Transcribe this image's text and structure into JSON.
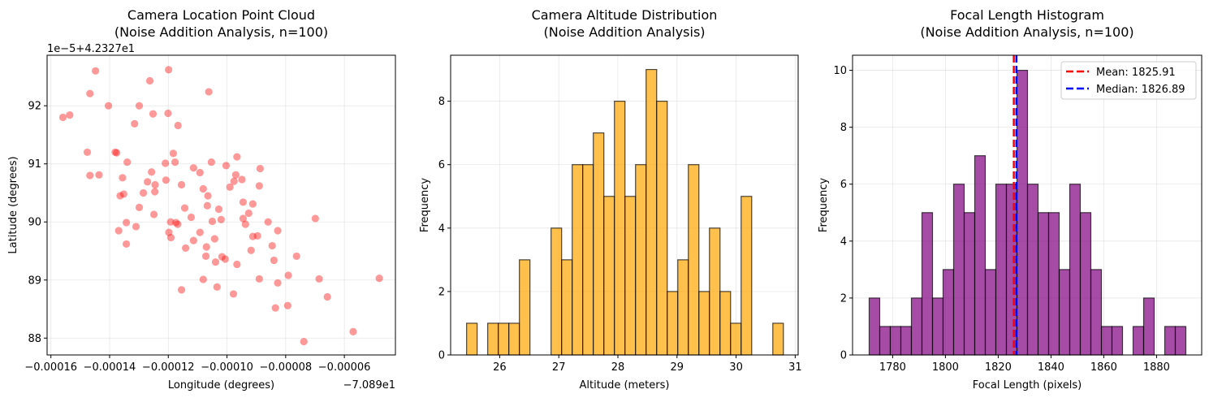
{
  "chart_data": [
    {
      "type": "scatter",
      "title_lines": [
        "Camera Location Point Cloud",
        "(Noise Addition Analysis, n=100)"
      ],
      "xlabel": "Longitude (degrees)",
      "ylabel": "Latitude (degrees)",
      "x_offset_text": "−7.089e1",
      "y_offset_text": "1e−5+4.2327e1",
      "xlim": [
        -0.0001613,
        -4.26e-05
      ],
      "ylim": [
        87.71,
        92.87
      ],
      "xticks": [
        -0.00016,
        -0.00014,
        -0.00012,
        -0.0001,
        -8e-05,
        -6e-05
      ],
      "xtick_labels": [
        "−0.00016",
        "−0.00014",
        "−0.00012",
        "−0.00010",
        "−0.00008",
        "−0.00006"
      ],
      "yticks": [
        88,
        89,
        90,
        91,
        92
      ],
      "ytick_labels": [
        "88",
        "89",
        "90",
        "91",
        "92"
      ],
      "grid": true,
      "color": "#ff0000",
      "opacity": 0.4,
      "points": [
        [
          -0.0001559,
          91.8
        ],
        [
          -0.0001536,
          91.84
        ],
        [
          -0.0001448,
          92.6
        ],
        [
          -0.0001467,
          92.21
        ],
        [
          -0.0001404,
          92.0
        ],
        [
          -0.0001263,
          92.43
        ],
        [
          -0.0001299,
          92.0
        ],
        [
          -0.0001252,
          91.86
        ],
        [
          -0.0001199,
          92.62
        ],
        [
          -0.0001201,
          91.87
        ],
        [
          -0.0001167,
          91.66
        ],
        [
          -0.0001062,
          92.24
        ],
        [
          -0.0001315,
          91.69
        ],
        [
          -0.0001476,
          91.2
        ],
        [
          -0.0001381,
          91.2
        ],
        [
          -0.0001376,
          91.19
        ],
        [
          -0.000134,
          91.03
        ],
        [
          -0.0001467,
          90.8
        ],
        [
          -0.0001436,
          90.81
        ],
        [
          -0.0001356,
          90.76
        ],
        [
          -0.0001364,
          90.45
        ],
        [
          -0.0001352,
          90.48
        ],
        [
          -0.0001271,
          90.69
        ],
        [
          -0.0001257,
          90.86
        ],
        [
          -0.0001245,
          90.64
        ],
        [
          -0.0001246,
          90.52
        ],
        [
          -0.0001285,
          90.5
        ],
        [
          -0.0001299,
          90.25
        ],
        [
          -0.0001249,
          90.13
        ],
        [
          -0.0001343,
          89.99
        ],
        [
          -0.0001369,
          89.85
        ],
        [
          -0.0001343,
          89.62
        ],
        [
          -0.000131,
          89.92
        ],
        [
          -0.000121,
          91.01
        ],
        [
          -0.0001208,
          90.72
        ],
        [
          -0.0001183,
          91.18
        ],
        [
          -0.0001177,
          91.03
        ],
        [
          -0.0001155,
          90.64
        ],
        [
          -0.0001114,
          90.93
        ],
        [
          -0.0001092,
          90.85
        ],
        [
          -0.0001081,
          90.57
        ],
        [
          -0.0001065,
          90.45
        ],
        [
          -0.0001067,
          90.28
        ],
        [
          -0.0001144,
          90.24
        ],
        [
          -0.0001122,
          90.08
        ],
        [
          -0.0001192,
          90.0
        ],
        [
          -0.0001174,
          89.99
        ],
        [
          -0.0001168,
          89.96
        ],
        [
          -0.0001198,
          89.82
        ],
        [
          -0.0001191,
          89.73
        ],
        [
          -0.0001092,
          89.82
        ],
        [
          -0.0001114,
          89.68
        ],
        [
          -0.0001141,
          89.55
        ],
        [
          -0.000107,
          89.57
        ],
        [
          -0.0001072,
          89.41
        ],
        [
          -0.000105,
          90.01
        ],
        [
          -0.0001028,
          90.22
        ],
        [
          -0.000102,
          90.04
        ],
        [
          -0.0001042,
          89.71
        ],
        [
          -0.0001039,
          89.31
        ],
        [
          -0.0001017,
          89.4
        ],
        [
          -0.0001006,
          89.36
        ],
        [
          -0.0001053,
          91.03
        ],
        [
          -0.0001003,
          90.97
        ],
        [
          -9.9e-05,
          90.6
        ],
        [
          -9.76e-05,
          90.7
        ],
        [
          -9.7e-05,
          90.81
        ],
        [
          -9.66e-05,
          91.12
        ],
        [
          -9.49e-05,
          90.73
        ],
        [
          -9.45e-05,
          90.34
        ],
        [
          -9.12e-05,
          90.31
        ],
        [
          -9.26e-05,
          90.15
        ],
        [
          -9.45e-05,
          90.06
        ],
        [
          -9.37e-05,
          89.96
        ],
        [
          -8.9e-05,
          90.62
        ],
        [
          -8.87e-05,
          90.92
        ],
        [
          -8.6e-05,
          90.0
        ],
        [
          -8.27e-05,
          89.85
        ],
        [
          -9.12e-05,
          89.75
        ],
        [
          -8.96e-05,
          89.76
        ],
        [
          -9.18e-05,
          89.51
        ],
        [
          -8.46e-05,
          89.59
        ],
        [
          -8.4e-05,
          89.34
        ],
        [
          -9.66e-05,
          89.27
        ],
        [
          -0.0001081,
          89.01
        ],
        [
          -0.0001155,
          88.83
        ],
        [
          -0.0001034,
          88.88
        ],
        [
          -9.78e-05,
          88.76
        ],
        [
          -8.9e-05,
          89.02
        ],
        [
          -8.27e-05,
          88.95
        ],
        [
          -7.91e-05,
          89.08
        ],
        [
          -7.63e-05,
          89.41
        ],
        [
          -8.35e-05,
          88.52
        ],
        [
          -7.93e-05,
          88.56
        ],
        [
          -7.38e-05,
          87.94
        ],
        [
          -6.99e-05,
          90.06
        ],
        [
          -6.86e-05,
          89.02
        ],
        [
          -6.58e-05,
          88.71
        ],
        [
          -5.7e-05,
          88.11
        ],
        [
          -4.81e-05,
          89.03
        ]
      ]
    },
    {
      "type": "bar",
      "subtype": "histogram",
      "title_lines": [
        "Camera Altitude Distribution",
        "(Noise Addition Analysis)"
      ],
      "xlabel": "Altitude (meters)",
      "ylabel": "Frequency",
      "xlim": [
        25.17,
        31.05
      ],
      "ylim": [
        0,
        9.45
      ],
      "xticks": [
        26,
        27,
        28,
        29,
        30,
        31
      ],
      "xtick_labels": [
        "26",
        "27",
        "28",
        "29",
        "30",
        "31"
      ],
      "yticks": [
        0,
        2,
        4,
        6,
        8
      ],
      "ytick_labels": [
        "0",
        "2",
        "4",
        "6",
        "8"
      ],
      "grid": true,
      "color": "#ffa500",
      "bin_range": [
        25.44,
        30.8
      ],
      "counts": [
        1,
        0,
        1,
        1,
        1,
        3,
        0,
        0,
        4,
        3,
        6,
        6,
        7,
        5,
        8,
        5,
        6,
        9,
        8,
        2,
        3,
        6,
        2,
        4,
        2,
        1,
        5,
        0,
        0,
        1
      ]
    },
    {
      "type": "bar",
      "subtype": "histogram",
      "title_lines": [
        "Focal Length Histogram",
        "(Noise Addition Analysis, n=100)"
      ],
      "xlabel": "Focal Length (pixels)",
      "ylabel": "Frequency",
      "xlim": [
        1764.8,
        1897.1
      ],
      "ylim": [
        0,
        10.53
      ],
      "xticks": [
        1780,
        1800,
        1820,
        1840,
        1860,
        1880
      ],
      "xtick_labels": [
        "1780",
        "1800",
        "1820",
        "1840",
        "1860",
        "1880"
      ],
      "yticks": [
        0,
        2,
        4,
        6,
        8,
        10
      ],
      "ytick_labels": [
        "0",
        "2",
        "4",
        "6",
        "8",
        "10"
      ],
      "grid": true,
      "color": "#800080",
      "bin_range": [
        1771.1,
        1891.1
      ],
      "counts": [
        2,
        1,
        1,
        1,
        2,
        5,
        2,
        3,
        6,
        5,
        7,
        3,
        6,
        6,
        10,
        6,
        5,
        5,
        3,
        6,
        5,
        3,
        1,
        1,
        0,
        1,
        2,
        0,
        1,
        1
      ],
      "vlines": [
        {
          "name": "Mean: 1825.91",
          "value": 1825.91,
          "color": "#ff0000",
          "style": "dashed"
        },
        {
          "name": "Median: 1826.89",
          "value": 1826.89,
          "color": "#0000ff",
          "style": "dashed"
        }
      ],
      "legend_position": "top-right"
    }
  ]
}
